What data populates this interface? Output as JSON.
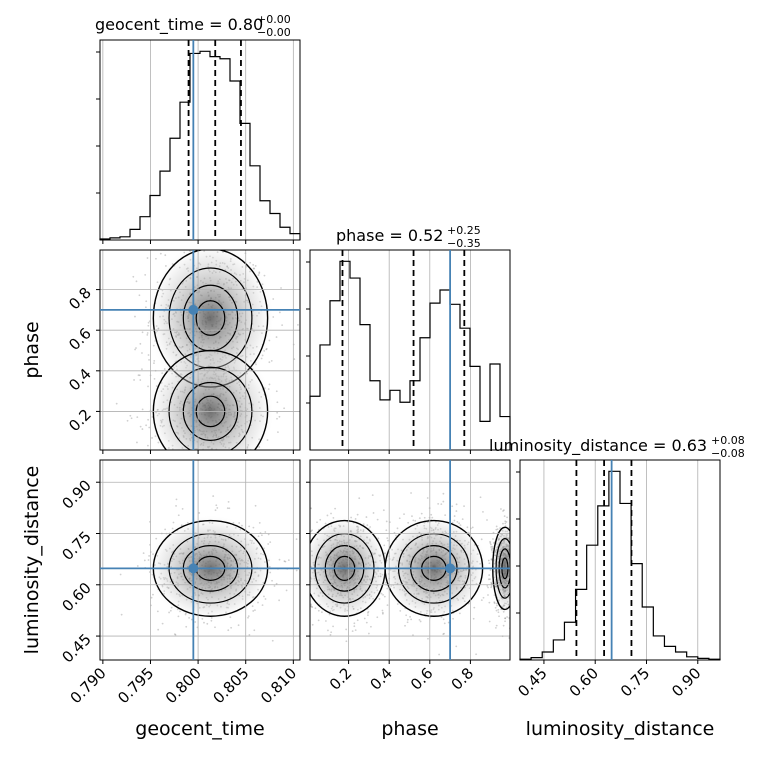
{
  "chart_data": {
    "type": "corner",
    "parameters": [
      "geocent_time",
      "phase",
      "luminosity_distance"
    ],
    "truth": {
      "geocent_time": 0.7995,
      "phase": 0.7,
      "luminosity_distance": 0.648
    },
    "titles": [
      {
        "name": "geocent_time",
        "text": "geocent_time = 0.80",
        "sup": "+0.00",
        "sub": "−0.00"
      },
      {
        "name": "phase",
        "text": "phase = 0.52",
        "sup": "+0.25",
        "sub": "−0.35"
      },
      {
        "name": "luminosity_distance",
        "text": "luminosity_distance = 0.63",
        "sup": "+0.08",
        "sub": "−0.08"
      }
    ],
    "quantiles": {
      "geocent_time": [
        0.799,
        0.8018,
        0.8045
      ],
      "phase": [
        0.17,
        0.52,
        0.77
      ],
      "luminosity_distance": [
        0.545,
        0.626,
        0.706
      ]
    },
    "axes": {
      "geocent_time": {
        "range": [
          0.7897,
          0.8107
        ],
        "ticks": [
          "0.790",
          "0.795",
          "0.800",
          "0.805",
          "0.810"
        ],
        "tick_values": [
          0.79,
          0.795,
          0.8,
          0.805,
          0.81
        ]
      },
      "phase": {
        "range": [
          0.01,
          0.995
        ],
        "ticks": [
          "0.2",
          "0.4",
          "0.6",
          "0.8"
        ],
        "tick_values": [
          0.2,
          0.4,
          0.6,
          0.8
        ]
      },
      "luminosity_distance": {
        "range": [
          0.38,
          0.965
        ],
        "ticks": [
          "0.45",
          "0.60",
          "0.75",
          "0.90"
        ],
        "tick_values": [
          0.45,
          0.6,
          0.75,
          0.9
        ]
      }
    },
    "histograms": {
      "geocent_time": {
        "edges_range": [
          0.7897,
          0.8107
        ],
        "counts": [
          1,
          2,
          3,
          10,
          22,
          42,
          65,
          96,
          130,
          176,
          178,
          173,
          171,
          150,
          110,
          70,
          37,
          25,
          12,
          6
        ]
      },
      "phase": {
        "edges_range": [
          0.01,
          0.995
        ],
        "counts": [
          45,
          88,
          125,
          158,
          144,
          105,
          58,
          42,
          50,
          40,
          58,
          94,
          123,
          134,
          122,
          102,
          70,
          24,
          72,
          28
        ]
      },
      "luminosity_distance": {
        "edges_range": [
          0.38,
          0.965
        ],
        "counts": [
          1,
          3,
          10,
          25,
          47,
          88,
          143,
          192,
          235,
          195,
          120,
          66,
          30,
          17,
          10,
          4,
          2,
          1
        ]
      }
    },
    "grid": true
  }
}
